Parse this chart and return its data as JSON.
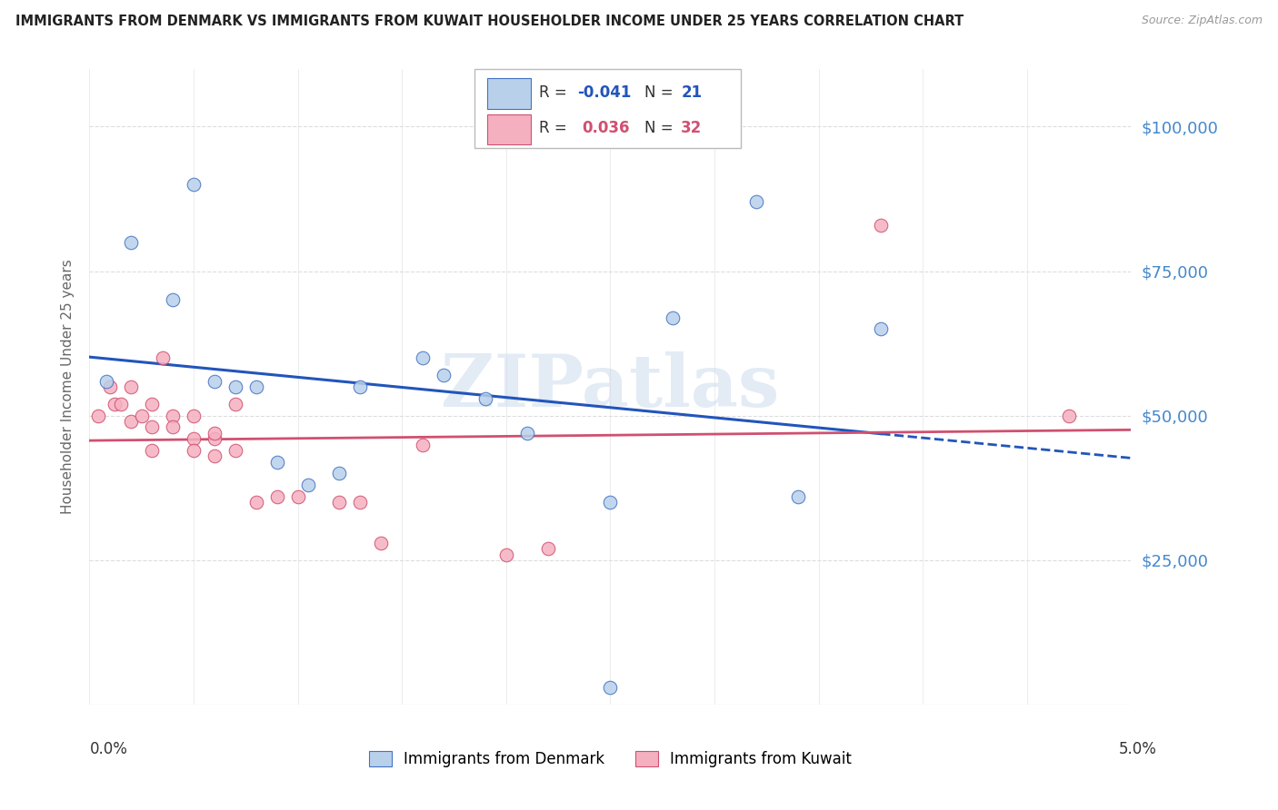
{
  "title": "IMMIGRANTS FROM DENMARK VS IMMIGRANTS FROM KUWAIT HOUSEHOLDER INCOME UNDER 25 YEARS CORRELATION CHART",
  "source": "Source: ZipAtlas.com",
  "ylabel": "Householder Income Under 25 years",
  "ytick_labels": [
    "$25,000",
    "$50,000",
    "$75,000",
    "$100,000"
  ],
  "ytick_values": [
    25000,
    50000,
    75000,
    100000
  ],
  "watermark": "ZIPatlas",
  "legend_r_denmark": "-0.041",
  "legend_n_denmark": "21",
  "legend_r_kuwait": "0.036",
  "legend_n_kuwait": "32",
  "denmark_color": "#b8d0ea",
  "kuwait_color": "#f5b0c0",
  "denmark_edge_color": "#4472c4",
  "kuwait_edge_color": "#d05070",
  "denmark_line_color": "#2255bb",
  "kuwait_line_color": "#d05070",
  "ylabel_color": "#666666",
  "ytick_color": "#4488cc",
  "title_color": "#222222",
  "background_color": "#ffffff",
  "grid_color": "#dddddd",
  "source_color": "#999999",
  "xlim": [
    0.0,
    0.05
  ],
  "ylim": [
    0,
    110000
  ],
  "denmark_x": [
    0.0008,
    0.002,
    0.004,
    0.005,
    0.006,
    0.007,
    0.008,
    0.009,
    0.0105,
    0.012,
    0.013,
    0.016,
    0.017,
    0.019,
    0.021,
    0.025,
    0.028,
    0.032,
    0.034,
    0.038,
    0.025
  ],
  "denmark_y": [
    56000,
    80000,
    70000,
    90000,
    56000,
    55000,
    55000,
    42000,
    38000,
    40000,
    55000,
    60000,
    57000,
    53000,
    47000,
    35000,
    67000,
    87000,
    36000,
    65000,
    3000
  ],
  "kuwait_x": [
    0.0004,
    0.001,
    0.0012,
    0.0015,
    0.002,
    0.002,
    0.0025,
    0.003,
    0.003,
    0.003,
    0.0035,
    0.004,
    0.004,
    0.005,
    0.005,
    0.005,
    0.006,
    0.006,
    0.006,
    0.007,
    0.007,
    0.008,
    0.009,
    0.01,
    0.012,
    0.013,
    0.014,
    0.016,
    0.02,
    0.022,
    0.038,
    0.047
  ],
  "kuwait_y": [
    50000,
    55000,
    52000,
    52000,
    55000,
    49000,
    50000,
    52000,
    48000,
    44000,
    60000,
    50000,
    48000,
    46000,
    50000,
    44000,
    46000,
    47000,
    43000,
    52000,
    44000,
    35000,
    36000,
    36000,
    35000,
    35000,
    28000,
    45000,
    26000,
    27000,
    83000,
    50000
  ],
  "marker_size": 110
}
